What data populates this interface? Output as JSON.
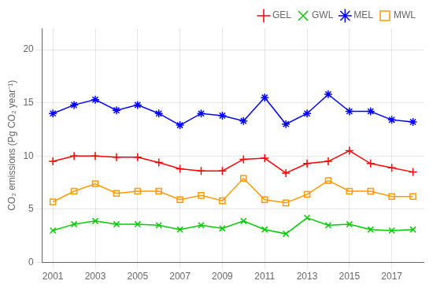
{
  "chart_data": {
    "type": "line",
    "y_label": "CO₂ emissions (Pg CO₂ year⁻¹)",
    "x": [
      2001,
      2002,
      2003,
      2004,
      2005,
      2006,
      2007,
      2008,
      2009,
      2010,
      2011,
      2012,
      2013,
      2014,
      2015,
      2016,
      2017,
      2018
    ],
    "series": [
      {
        "name": "GEL",
        "color": "#ff0000",
        "marker": "plus",
        "values": [
          9.5,
          10.0,
          10.0,
          9.9,
          9.9,
          9.4,
          8.8,
          8.6,
          8.6,
          9.7,
          9.8,
          8.4,
          9.3,
          9.5,
          10.5,
          9.3,
          8.9,
          8.5
        ]
      },
      {
        "name": "GWL",
        "color": "#00cc00",
        "marker": "x",
        "values": [
          3.0,
          3.6,
          3.9,
          3.6,
          3.6,
          3.5,
          3.1,
          3.5,
          3.2,
          3.9,
          3.1,
          2.7,
          4.2,
          3.5,
          3.6,
          3.1,
          3.0,
          3.1
        ]
      },
      {
        "name": "MEL",
        "color": "#0000ff",
        "marker": "star",
        "values": [
          14.0,
          14.8,
          15.3,
          14.3,
          14.8,
          14.0,
          12.9,
          14.0,
          13.8,
          13.3,
          15.5,
          13.0,
          14.0,
          15.8,
          14.2,
          14.2,
          13.4,
          13.2
        ]
      },
      {
        "name": "MWL",
        "color": "#ff9900",
        "marker": "square",
        "values": [
          5.7,
          6.7,
          7.4,
          6.5,
          6.7,
          6.7,
          5.9,
          6.3,
          5.8,
          7.9,
          5.9,
          5.6,
          6.4,
          7.7,
          6.7,
          6.7,
          6.2,
          6.2
        ]
      }
    ],
    "xlim": [
      2000.5,
      2018.5
    ],
    "xticks": [
      2001,
      2003,
      2005,
      2007,
      2009,
      2011,
      2013,
      2015,
      2017
    ],
    "ylim": [
      0,
      22
    ],
    "yticks": [
      0,
      5,
      10,
      15,
      20
    ],
    "grid": true,
    "legend": "upper right"
  }
}
